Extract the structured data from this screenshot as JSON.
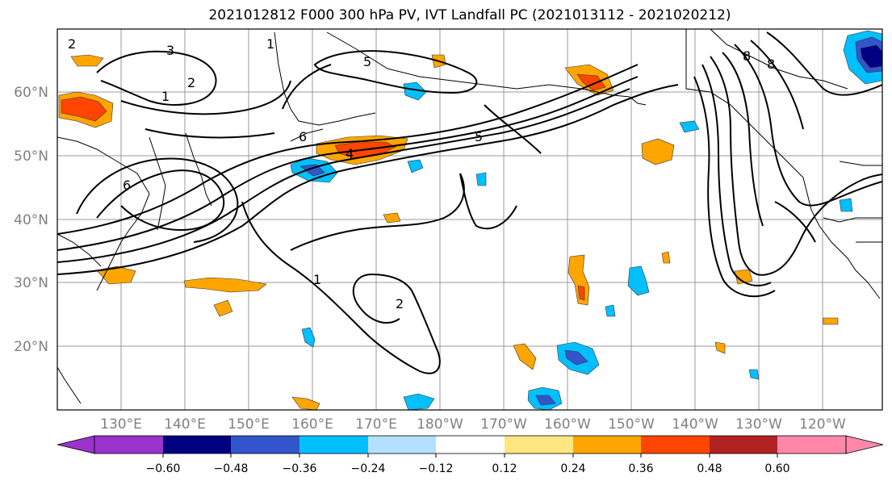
{
  "title": "2021012812 F000 300 hPa PV, IVT Landfall PC (2021013112 - 2021020212)",
  "latitude_labels": [
    "60°N",
    "50°N",
    "40°N",
    "30°N",
    "20°N"
  ],
  "longitude_labels": [
    "130°E",
    "140°E",
    "150°E",
    "160°E",
    "170°E",
    "180°W",
    "170°W",
    "160°W",
    "150°W",
    "140°W",
    "130°W",
    "120°W"
  ],
  "contour_labels": [
    "1",
    "2",
    "3",
    "5",
    "6",
    "8",
    "1",
    "2",
    "6",
    "5",
    "4",
    "1",
    "2",
    "8"
  ],
  "colorbar": {
    "ticks": [
      "−0.60",
      "−0.48",
      "−0.36",
      "−0.24",
      "−0.12",
      "0.12",
      "0.24",
      "0.36",
      "0.48",
      "0.60"
    ],
    "colors": [
      "#9933cc",
      "#000080",
      "#3355cc",
      "#00bfff",
      "#b3e0ff",
      "#ffffff",
      "#ffe680",
      "#ffa500",
      "#ff4500",
      "#b22222",
      "#ff88aa"
    ]
  },
  "fill_colors": {
    "neg_light": "#b3e0ff",
    "neg_mid": "#00bfff",
    "neg_strong": "#3355cc",
    "neg_darkest": "#000080",
    "pos_light": "#ffe680",
    "pos_mid": "#ffa500",
    "pos_strong": "#ff4500",
    "pos_darkest": "#b22222"
  }
}
